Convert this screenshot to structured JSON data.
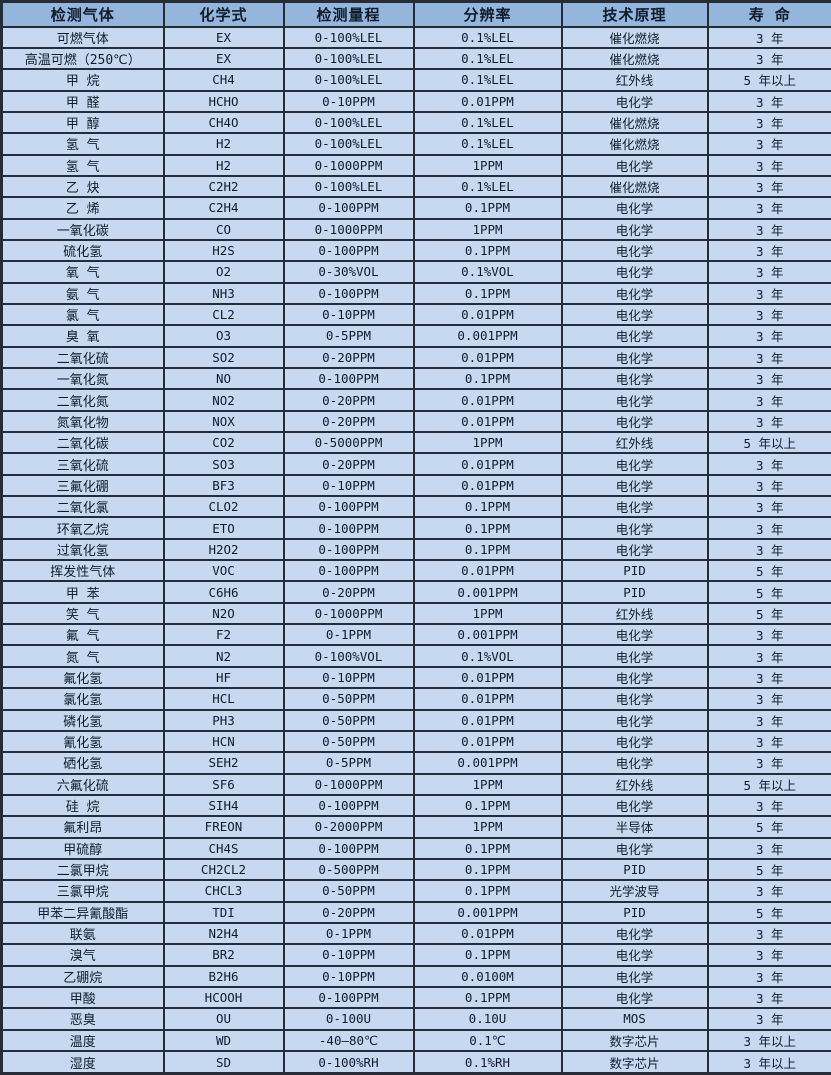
{
  "colors": {
    "header_bg": "#94b6dd",
    "row_bg": "#c7d9f0",
    "border": "#272c36",
    "text": "#101c2c"
  },
  "table": {
    "columns": [
      {
        "label": "检测气体"
      },
      {
        "label": "化学式"
      },
      {
        "label": "检测量程"
      },
      {
        "label": "分辨率"
      },
      {
        "label": "技术原理"
      },
      {
        "label": "寿 命"
      }
    ],
    "rows": [
      [
        "可燃气体",
        "EX",
        "0-100%LEL",
        "0.1%LEL",
        "催化燃烧",
        "3 年"
      ],
      [
        "高温可燃（250℃）",
        "EX",
        "0-100%LEL",
        "0.1%LEL",
        "催化燃烧",
        "3 年"
      ],
      [
        "甲 烷",
        "CH4",
        "0-100%LEL",
        "0.1%LEL",
        "红外线",
        "5 年以上"
      ],
      [
        "甲 醛",
        "HCHO",
        "0-10PPM",
        "0.01PPM",
        "电化学",
        "3 年"
      ],
      [
        "甲 醇",
        "CH4O",
        "0-100%LEL",
        "0.1%LEL",
        "催化燃烧",
        "3 年"
      ],
      [
        "氢 气",
        "H2",
        "0-100%LEL",
        "0.1%LEL",
        "催化燃烧",
        "3 年"
      ],
      [
        "氢 气",
        "H2",
        "0-1000PPM",
        "1PPM",
        "电化学",
        "3 年"
      ],
      [
        "乙 炔",
        "C2H2",
        "0-100%LEL",
        "0.1%LEL",
        "催化燃烧",
        "3 年"
      ],
      [
        "乙 烯",
        "C2H4",
        "0-100PPM",
        "0.1PPM",
        "电化学",
        "3 年"
      ],
      [
        "一氧化碳",
        "CO",
        "0-1000PPM",
        "1PPM",
        "电化学",
        "3 年"
      ],
      [
        "硫化氢",
        "H2S",
        "0-100PPM",
        "0.1PPM",
        "电化学",
        "3 年"
      ],
      [
        "氧 气",
        "O2",
        "0-30%VOL",
        "0.1%VOL",
        "电化学",
        "3 年"
      ],
      [
        "氨 气",
        "NH3",
        "0-100PPM",
        "0.1PPM",
        "电化学",
        "3 年"
      ],
      [
        "氯 气",
        "CL2",
        "0-10PPM",
        "0.01PPM",
        "电化学",
        "3 年"
      ],
      [
        "臭 氧",
        "O3",
        "0-5PPM",
        "0.001PPM",
        "电化学",
        "3 年"
      ],
      [
        "二氧化硫",
        "SO2",
        "0-20PPM",
        "0.01PPM",
        "电化学",
        "3 年"
      ],
      [
        "一氧化氮",
        "NO",
        "0-100PPM",
        "0.1PPM",
        "电化学",
        "3 年"
      ],
      [
        "二氧化氮",
        "NO2",
        "0-20PPM",
        "0.01PPM",
        "电化学",
        "3 年"
      ],
      [
        "氮氧化物",
        "NOX",
        "0-20PPM",
        "0.01PPM",
        "电化学",
        "3 年"
      ],
      [
        "二氧化碳",
        "CO2",
        "0-5000PPM",
        "1PPM",
        "红外线",
        "5 年以上"
      ],
      [
        "三氧化硫",
        "SO3",
        "0-20PPM",
        "0.01PPM",
        "电化学",
        "3 年"
      ],
      [
        "三氟化硼",
        "BF3",
        "0-10PPM",
        "0.01PPM",
        "电化学",
        "3 年"
      ],
      [
        "二氧化氯",
        "CLO2",
        "0-100PPM",
        "0.1PPM",
        "电化学",
        "3 年"
      ],
      [
        "环氧乙烷",
        "ETO",
        "0-100PPM",
        "0.1PPM",
        "电化学",
        "3 年"
      ],
      [
        "过氧化氢",
        "H2O2",
        "0-100PPM",
        "0.1PPM",
        "电化学",
        "3 年"
      ],
      [
        "挥发性气体",
        "VOC",
        "0-100PPM",
        "0.01PPM",
        "PID",
        "5 年"
      ],
      [
        "甲 苯",
        "C6H6",
        "0-20PPM",
        "0.001PPM",
        "PID",
        "5 年"
      ],
      [
        "笑 气",
        "N2O",
        "0-1000PPM",
        "1PPM",
        "红外线",
        "5 年"
      ],
      [
        "氟 气",
        "F2",
        "0-1PPM",
        "0.001PPM",
        "电化学",
        "3 年"
      ],
      [
        "氮 气",
        "N2",
        "0-100%VOL",
        "0.1%VOL",
        "电化学",
        "3 年"
      ],
      [
        "氟化氢",
        "HF",
        "0-10PPM",
        "0.01PPM",
        "电化学",
        "3 年"
      ],
      [
        "氯化氢",
        "HCL",
        "0-50PPM",
        "0.01PPM",
        "电化学",
        "3 年"
      ],
      [
        "磷化氢",
        "PH3",
        "0-50PPM",
        "0.01PPM",
        "电化学",
        "3 年"
      ],
      [
        "氰化氢",
        "HCN",
        "0-50PPM",
        "0.01PPM",
        "电化学",
        "3 年"
      ],
      [
        "硒化氢",
        "SEH2",
        "0-5PPM",
        "0.001PPM",
        "电化学",
        "3 年"
      ],
      [
        "六氟化硫",
        "SF6",
        "0-1000PPM",
        "1PPM",
        "红外线",
        "5 年以上"
      ],
      [
        "硅 烷",
        "SIH4",
        "0-100PPM",
        "0.1PPM",
        "电化学",
        "3 年"
      ],
      [
        "氟利昂",
        "FREON",
        "0-2000PPM",
        "1PPM",
        "半导体",
        "5 年"
      ],
      [
        "甲硫醇",
        "CH4S",
        "0-100PPM",
        "0.1PPM",
        "电化学",
        "3 年"
      ],
      [
        "二氯甲烷",
        "CH2CL2",
        "0-500PPM",
        "0.1PPM",
        "PID",
        "5 年"
      ],
      [
        "三氯甲烷",
        "CHCL3",
        "0-50PPM",
        "0.1PPM",
        "光学波导",
        "3 年"
      ],
      [
        "甲苯二异氰酸酯",
        "TDI",
        "0-20PPM",
        "0.001PPM",
        "PID",
        "5 年"
      ],
      [
        "联氨",
        "N2H4",
        "0-1PPM",
        "0.01PPM",
        "电化学",
        "3 年"
      ],
      [
        "溴气",
        "BR2",
        "0-10PPM",
        "0.1PPM",
        "电化学",
        "3 年"
      ],
      [
        "乙硼烷",
        "B2H6",
        "0-10PPM",
        "0.0100M",
        "电化学",
        "3 年"
      ],
      [
        "甲酸",
        "HCOOH",
        "0-100PPM",
        "0.1PPM",
        "电化学",
        "3 年"
      ],
      [
        "恶臭",
        "OU",
        "0-100U",
        "0.10U",
        "MOS",
        "3 年"
      ],
      [
        "温度",
        "WD",
        "-40—80℃",
        "0.1℃",
        "数字芯片",
        "3 年以上"
      ],
      [
        "湿度",
        "SD",
        "0-100%RH",
        "0.1%RH",
        "数字芯片",
        "3 年以上"
      ]
    ]
  }
}
